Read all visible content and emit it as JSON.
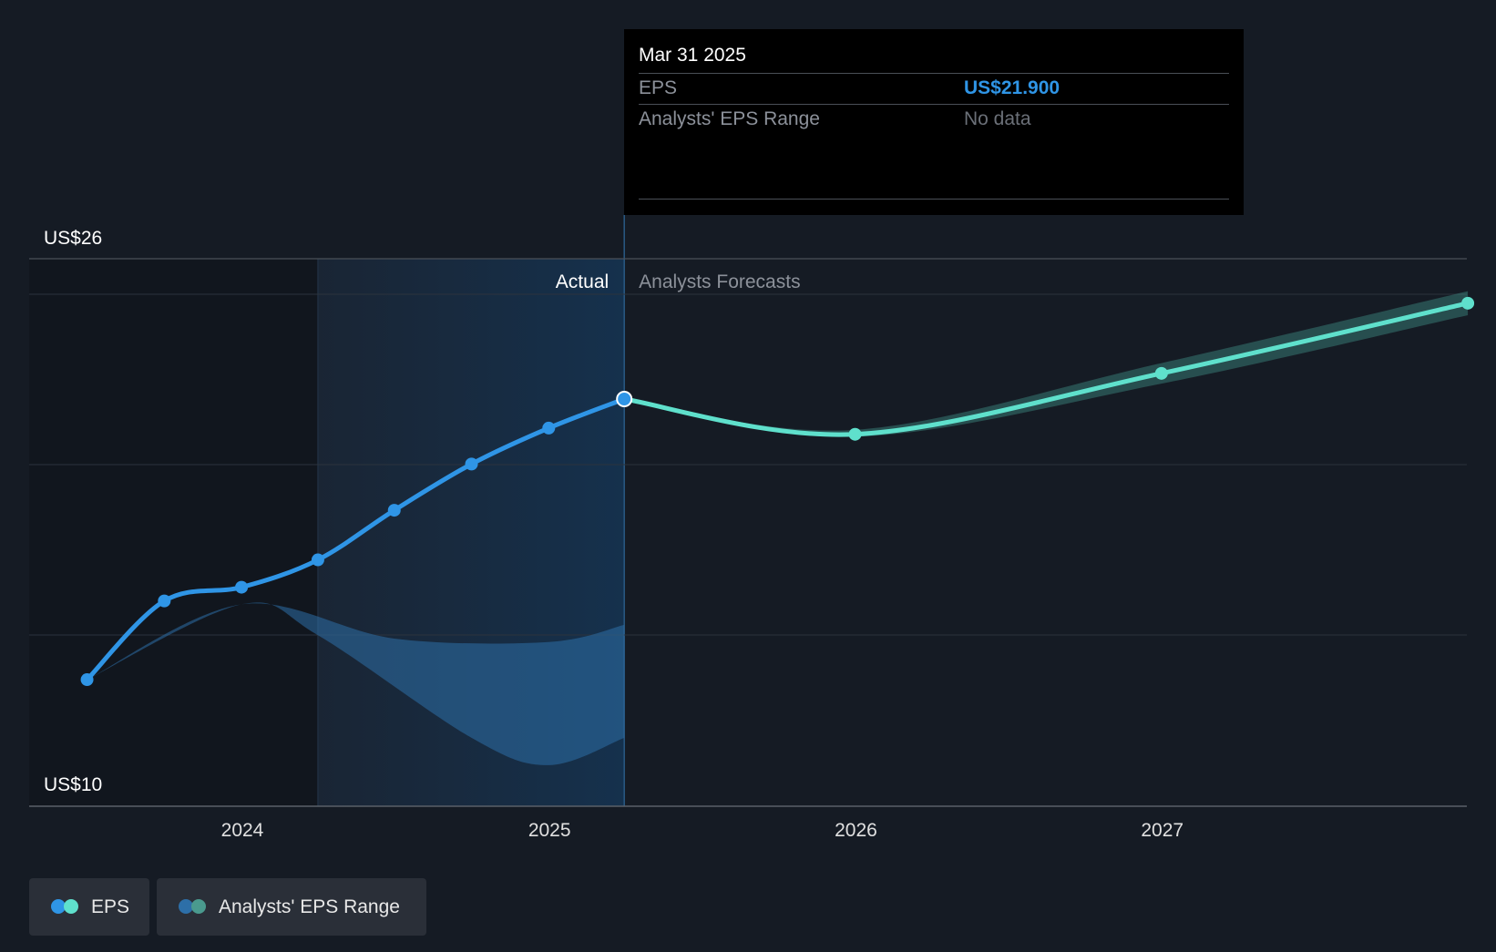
{
  "chart_data": {
    "type": "line",
    "y_axis": {
      "top_label": "US$26",
      "bottom_label": "US$10",
      "ylim": [
        10,
        26
      ]
    },
    "x_ticks": [
      "2024",
      "2025",
      "2026",
      "2027"
    ],
    "region_labels": {
      "actual": "Actual",
      "forecast": "Analysts Forecasts"
    },
    "series": [
      {
        "name": "EPS",
        "kind": "actual",
        "color": "#2f95e6",
        "points": [
          {
            "x": "2023-06-30",
            "y": 13.7
          },
          {
            "x": "2023-09-30",
            "y": 16.0
          },
          {
            "x": "2023-12-31",
            "y": 16.4
          },
          {
            "x": "2024-03-31",
            "y": 17.2
          },
          {
            "x": "2024-06-30",
            "y": 18.65
          },
          {
            "x": "2024-09-30",
            "y": 20.0
          },
          {
            "x": "2024-12-31",
            "y": 21.05
          },
          {
            "x": "2025-03-31",
            "y": 21.9
          }
        ]
      },
      {
        "name": "EPS",
        "kind": "forecast",
        "color": "#5fe0cc",
        "points": [
          {
            "x": "2025-03-31",
            "y": 21.9
          },
          {
            "x": "2025-12-31",
            "y": 20.87
          },
          {
            "x": "2026-12-31",
            "y": 22.65
          },
          {
            "x": "2027-12-31",
            "y": 24.7
          }
        ]
      }
    ],
    "range_band": {
      "name": "Analysts' EPS Range",
      "color": "#2d6fa8",
      "upper": [
        {
          "x": "2023-06-30",
          "y": 13.7
        },
        {
          "x": "2023-12-31",
          "y": 15.9
        },
        {
          "x": "2024-06-30",
          "y": 14.9
        },
        {
          "x": "2024-12-31",
          "y": 14.8
        },
        {
          "x": "2025-03-31",
          "y": 15.3
        }
      ],
      "lower": [
        {
          "x": "2023-06-30",
          "y": 13.7
        },
        {
          "x": "2023-12-31",
          "y": 15.9
        },
        {
          "x": "2024-03-31",
          "y": 15.0
        },
        {
          "x": "2024-09-30",
          "y": 12.0
        },
        {
          "x": "2024-12-31",
          "y": 11.2
        },
        {
          "x": "2025-03-31",
          "y": 12.0
        }
      ]
    },
    "forecast_range": {
      "upper": [
        {
          "x": "2025-03-31",
          "y": 21.9
        },
        {
          "x": "2025-12-31",
          "y": 21.0
        },
        {
          "x": "2026-12-31",
          "y": 22.95
        },
        {
          "x": "2027-12-31",
          "y": 25.05
        }
      ],
      "lower": [
        {
          "x": "2025-03-31",
          "y": 21.9
        },
        {
          "x": "2025-12-31",
          "y": 20.8
        },
        {
          "x": "2026-12-31",
          "y": 22.35
        },
        {
          "x": "2027-12-31",
          "y": 24.35
        }
      ]
    }
  },
  "tooltip": {
    "date": "Mar 31 2025",
    "rows": [
      {
        "label": "EPS",
        "value": "US$21.900"
      },
      {
        "label": "Analysts' EPS Range",
        "value": "No data"
      }
    ]
  },
  "legend": [
    {
      "label": "EPS",
      "colors": [
        "#2f95e6",
        "#5fe0cc"
      ]
    },
    {
      "label": "Analysts' EPS Range",
      "colors": [
        "#2d6fa8",
        "#4a9a8e"
      ]
    }
  ]
}
